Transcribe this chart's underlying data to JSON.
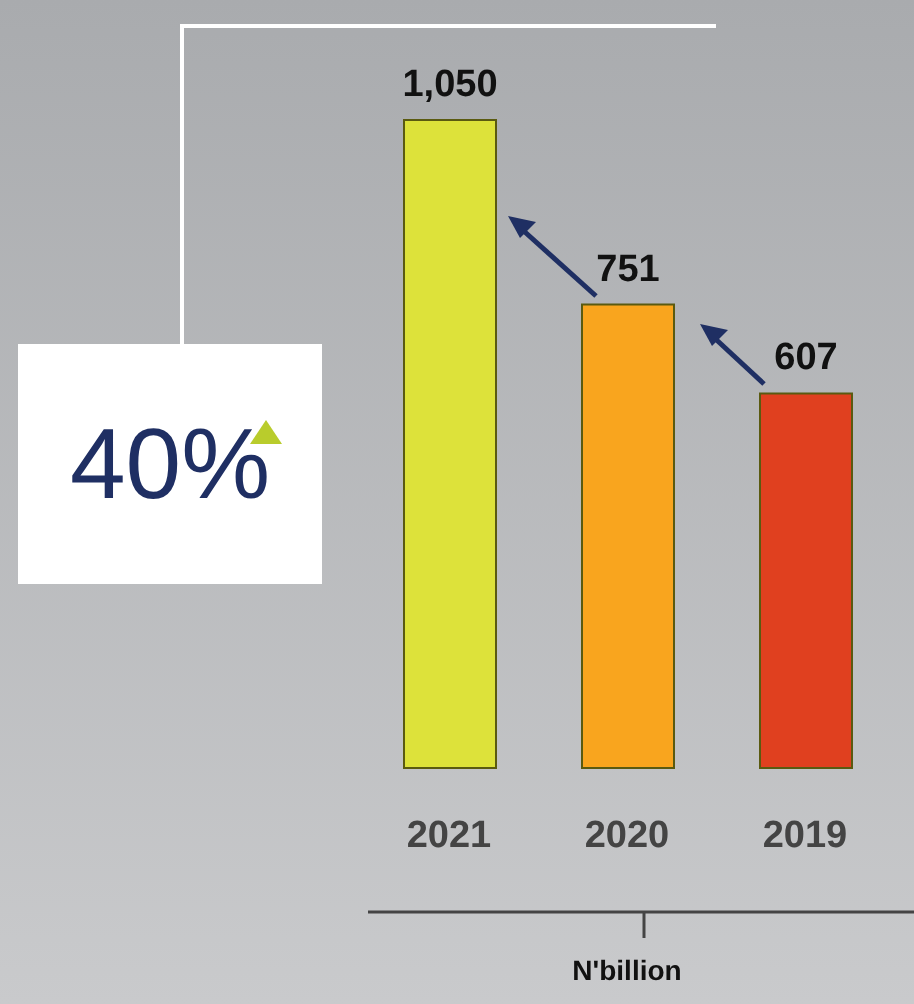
{
  "chart_data": {
    "type": "bar",
    "xlabel": "N'billion",
    "categories": [
      "2021",
      "2020",
      "2019"
    ],
    "values": [
      1050,
      751,
      607
    ],
    "colors": [
      "#dde23a",
      "#f9a51e",
      "#e0401f"
    ],
    "value_labels": [
      "1,050",
      "751",
      "607"
    ],
    "annotations": [
      "40%"
    ]
  }
}
